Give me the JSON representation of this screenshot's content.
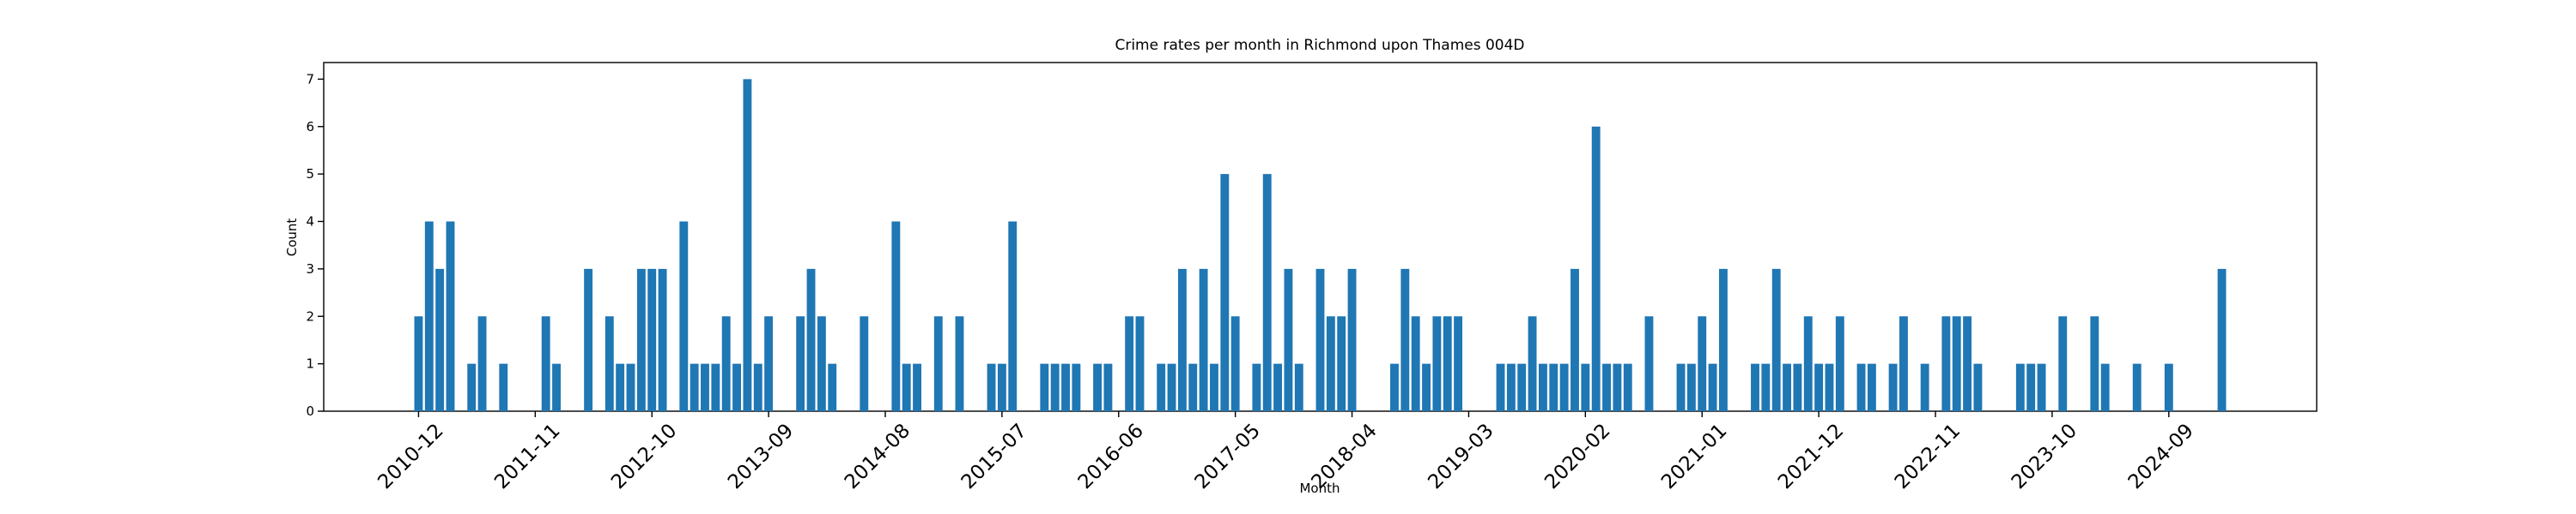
{
  "chart_data": {
    "type": "bar",
    "title": "Crime rates per month in Richmond upon Thames 004D",
    "x_label": "Month",
    "y_label": "Count",
    "color": "#1f77b4",
    "categories": [
      "2010-12",
      null,
      null,
      null,
      null,
      null,
      null,
      null,
      null,
      null,
      null,
      "2011-11",
      null,
      null,
      null,
      null,
      null,
      null,
      null,
      null,
      null,
      null,
      "2012-10",
      null,
      null,
      null,
      null,
      null,
      null,
      null,
      null,
      null,
      null,
      "2013-09",
      null,
      null,
      null,
      null,
      null,
      null,
      null,
      null,
      null,
      null,
      "2014-08",
      null,
      null,
      null,
      null,
      null,
      null,
      null,
      null,
      null,
      null,
      "2015-07",
      null,
      null,
      null,
      null,
      null,
      null,
      null,
      null,
      null,
      null,
      "2016-06",
      null,
      null,
      null,
      null,
      null,
      null,
      null,
      null,
      null,
      null,
      "2017-05",
      null,
      null,
      null,
      null,
      null,
      null,
      null,
      null,
      null,
      null,
      "2018-04",
      null,
      null,
      null,
      null,
      null,
      null,
      null,
      null,
      null,
      null,
      "2019-03",
      null,
      null,
      null,
      null,
      null,
      null,
      null,
      null,
      null,
      null,
      "2020-02",
      null,
      null,
      null,
      null,
      null,
      null,
      null,
      null,
      null,
      null,
      "2021-01",
      null,
      null,
      null,
      null,
      null,
      null,
      null,
      null,
      null,
      null,
      "2021-12",
      null,
      null,
      null,
      null,
      null,
      null,
      null,
      null,
      null,
      null,
      "2022-11",
      null,
      null,
      null,
      null,
      null,
      null,
      null,
      null,
      null,
      null,
      "2023-10",
      null,
      null,
      null,
      null,
      null,
      null,
      null,
      null,
      null,
      null,
      "2024-09",
      null,
      null,
      null,
      null,
      null
    ],
    "values": [
      2,
      4,
      3,
      4,
      0,
      1,
      2,
      0,
      1,
      0,
      0,
      0,
      2,
      1,
      0,
      0,
      3,
      0,
      2,
      1,
      1,
      3,
      3,
      3,
      0,
      4,
      1,
      1,
      1,
      2,
      1,
      7,
      1,
      2,
      0,
      0,
      2,
      3,
      2,
      1,
      0,
      0,
      2,
      0,
      0,
      4,
      1,
      1,
      0,
      2,
      0,
      2,
      0,
      0,
      1,
      1,
      4,
      0,
      0,
      1,
      1,
      1,
      1,
      0,
      1,
      1,
      0,
      2,
      2,
      0,
      1,
      1,
      3,
      1,
      3,
      1,
      5,
      2,
      0,
      1,
      5,
      1,
      3,
      1,
      0,
      3,
      2,
      2,
      3,
      0,
      0,
      0,
      1,
      3,
      2,
      1,
      2,
      2,
      2,
      0,
      0,
      0,
      1,
      1,
      1,
      2,
      1,
      1,
      1,
      3,
      1,
      6,
      1,
      1,
      1,
      0,
      2,
      0,
      0,
      1,
      1,
      2,
      1,
      3,
      0,
      0,
      1,
      1,
      3,
      1,
      1,
      2,
      1,
      1,
      2,
      0,
      1,
      1,
      0,
      1,
      2,
      0,
      1,
      0,
      2,
      2,
      2,
      1,
      0,
      0,
      0,
      1,
      1,
      1,
      0,
      2,
      0,
      0,
      2,
      1,
      0,
      0,
      1,
      0,
      0,
      1,
      0,
      0,
      0,
      0,
      3
    ],
    "ylim": [
      0,
      7.35
    ],
    "yticks": [
      0,
      1,
      2,
      3,
      4,
      5,
      6,
      7
    ]
  }
}
